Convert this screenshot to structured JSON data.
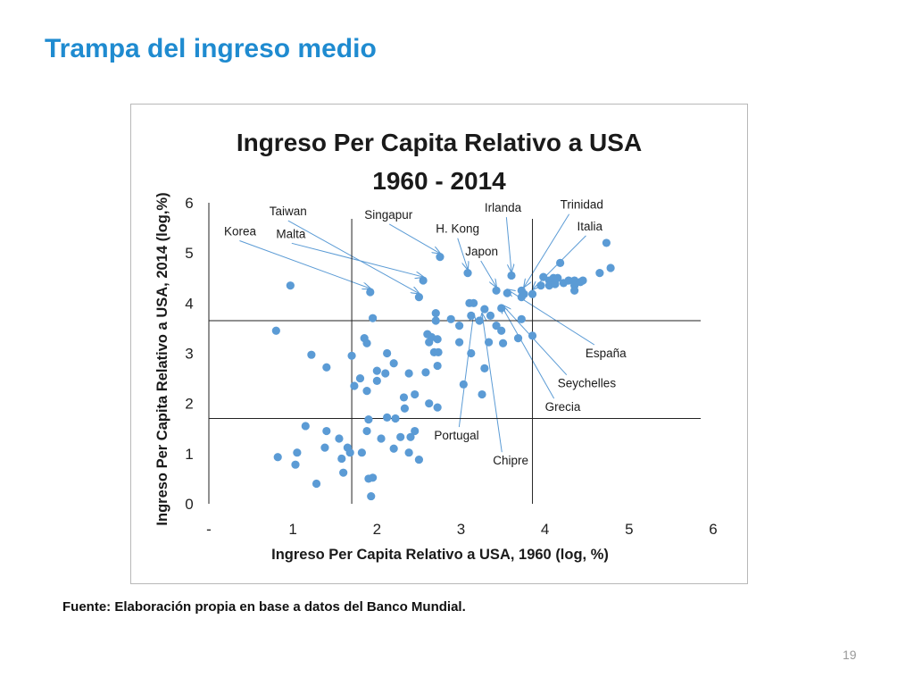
{
  "slide": {
    "title": "Trampa del ingreso medio",
    "source_note": "Fuente: Elaboración propia en base a datos del Banco Mundial.",
    "page_number": "19"
  },
  "chart_data": {
    "type": "scatter",
    "title_lines": [
      "Ingreso Per Capita Relativo a USA",
      "1960 - 2014"
    ],
    "xlabel": "Ingreso Per Capita Relativo a USA, 1960 (log, %)",
    "ylabel": "Ingreso Per Capita Relativo a USA, 2014 (log,%)",
    "xlim": [
      0,
      6
    ],
    "ylim": [
      0,
      6
    ],
    "x_ticks": [
      "-",
      "1",
      "2",
      "3",
      "4",
      "5",
      "6"
    ],
    "y_ticks": [
      "0",
      "1",
      "2",
      "3",
      "4",
      "5",
      "6"
    ],
    "reference_lines": {
      "vertical": [
        1.7,
        3.85
      ],
      "horizontal": [
        1.7,
        3.65
      ]
    },
    "marker_color": "#5b9bd5",
    "axis_color": "#222222",
    "points": [
      [
        0.97,
        4.35
      ],
      [
        0.8,
        3.45
      ],
      [
        1.22,
        2.97
      ],
      [
        1.4,
        2.72
      ],
      [
        1.15,
        1.55
      ],
      [
        1.4,
        1.45
      ],
      [
        1.55,
        1.3
      ],
      [
        1.38,
        1.12
      ],
      [
        1.65,
        1.12
      ],
      [
        1.68,
        1.02
      ],
      [
        1.05,
        1.02
      ],
      [
        0.82,
        0.93
      ],
      [
        1.03,
        0.78
      ],
      [
        1.58,
        0.9
      ],
      [
        1.6,
        0.62
      ],
      [
        1.28,
        0.4
      ],
      [
        1.9,
        0.5
      ],
      [
        1.82,
        1.02
      ],
      [
        1.88,
        1.45
      ],
      [
        1.9,
        1.68
      ],
      [
        1.95,
        0.52
      ],
      [
        1.93,
        0.15
      ],
      [
        1.7,
        2.95
      ],
      [
        1.85,
        3.3
      ],
      [
        1.88,
        3.2
      ],
      [
        1.73,
        2.35
      ],
      [
        1.8,
        2.5
      ],
      [
        1.88,
        2.25
      ],
      [
        2.0,
        2.45
      ],
      [
        2.0,
        2.65
      ],
      [
        2.1,
        2.6
      ],
      [
        2.12,
        3.0
      ],
      [
        2.2,
        2.8
      ],
      [
        2.05,
        1.3
      ],
      [
        2.12,
        1.72
      ],
      [
        2.22,
        1.7
      ],
      [
        2.28,
        1.33
      ],
      [
        2.4,
        1.33
      ],
      [
        2.45,
        1.45
      ],
      [
        2.38,
        1.02
      ],
      [
        2.2,
        1.1
      ],
      [
        2.5,
        0.88
      ],
      [
        2.32,
        2.12
      ],
      [
        2.45,
        2.18
      ],
      [
        2.33,
        1.9
      ],
      [
        2.38,
        2.6
      ],
      [
        2.58,
        2.62
      ],
      [
        2.62,
        2.0
      ],
      [
        2.72,
        1.92
      ],
      [
        2.72,
        2.75
      ],
      [
        2.68,
        3.02
      ],
      [
        2.73,
        3.02
      ],
      [
        2.62,
        3.22
      ],
      [
        2.65,
        3.32
      ],
      [
        2.6,
        3.38
      ],
      [
        2.72,
        3.28
      ],
      [
        2.7,
        3.65
      ],
      [
        2.7,
        3.8
      ],
      [
        2.88,
        3.68
      ],
      [
        2.98,
        3.55
      ],
      [
        2.98,
        3.22
      ],
      [
        3.03,
        2.38
      ],
      [
        3.12,
        3.0
      ],
      [
        3.12,
        3.75
      ],
      [
        3.1,
        4.0
      ],
      [
        3.15,
        4.0
      ],
      [
        3.22,
        3.65
      ],
      [
        3.28,
        3.88
      ],
      [
        3.33,
        3.22
      ],
      [
        3.28,
        2.7
      ],
      [
        3.25,
        2.18
      ],
      [
        3.35,
        3.75
      ],
      [
        3.42,
        3.55
      ],
      [
        3.5,
        3.2
      ],
      [
        3.48,
        3.45
      ],
      [
        3.48,
        3.9
      ],
      [
        3.55,
        4.2
      ],
      [
        3.72,
        3.68
      ],
      [
        3.68,
        3.3
      ],
      [
        3.85,
        3.35
      ],
      [
        3.42,
        4.25
      ],
      [
        3.72,
        4.25
      ],
      [
        3.75,
        4.18
      ],
      [
        3.72,
        4.12
      ],
      [
        3.85,
        4.18
      ],
      [
        3.98,
        4.52
      ],
      [
        3.95,
        4.35
      ],
      [
        4.05,
        4.45
      ],
      [
        4.1,
        4.5
      ],
      [
        4.05,
        4.35
      ],
      [
        4.12,
        4.38
      ],
      [
        4.15,
        4.5
      ],
      [
        4.22,
        4.4
      ],
      [
        4.28,
        4.45
      ],
      [
        4.35,
        4.45
      ],
      [
        4.35,
        4.35
      ],
      [
        4.42,
        4.42
      ],
      [
        4.45,
        4.45
      ],
      [
        4.18,
        4.8
      ],
      [
        4.35,
        4.25
      ],
      [
        4.65,
        4.6
      ],
      [
        4.73,
        5.2
      ],
      [
        4.78,
        4.7
      ],
      [
        3.08,
        4.6
      ],
      [
        3.6,
        4.55
      ],
      [
        2.75,
        4.92
      ],
      [
        2.55,
        4.45
      ],
      [
        2.5,
        4.12
      ],
      [
        1.92,
        4.22
      ],
      [
        1.95,
        3.7
      ]
    ],
    "annotations": [
      {
        "label": "Korea",
        "text_at": [
          0.18,
          5.35
        ],
        "target": [
          1.92,
          4.22
        ]
      },
      {
        "label": "Taiwan",
        "text_at": [
          0.72,
          5.75
        ],
        "target": [
          2.5,
          4.12
        ]
      },
      {
        "label": "Malta",
        "text_at": [
          0.8,
          5.3
        ],
        "target": [
          2.55,
          4.45
        ]
      },
      {
        "label": "Singapur",
        "text_at": [
          1.85,
          5.68
        ],
        "target": [
          2.75,
          4.92
        ]
      },
      {
        "label": "H. Kong",
        "text_at": [
          2.7,
          5.4
        ],
        "target": [
          3.08,
          4.6
        ]
      },
      {
        "label": "Irlanda",
        "text_at": [
          3.28,
          5.82
        ],
        "target": [
          3.6,
          4.55
        ]
      },
      {
        "label": "Trinidad",
        "text_at": [
          4.18,
          5.88
        ],
        "target": [
          3.75,
          4.25
        ]
      },
      {
        "label": "Italia",
        "text_at": [
          4.38,
          5.45
        ],
        "target": [
          3.85,
          4.2
        ]
      },
      {
        "label": "Japon",
        "text_at": [
          3.05,
          4.95
        ],
        "target": [
          3.42,
          4.25
        ]
      },
      {
        "label": "España",
        "text_at": [
          4.48,
          2.92
        ],
        "target": [
          3.55,
          4.2
        ]
      },
      {
        "label": "Seychelles",
        "text_at": [
          4.15,
          2.32
        ],
        "target": [
          3.5,
          3.88
        ]
      },
      {
        "label": "Grecia",
        "text_at": [
          4.0,
          1.85
        ],
        "target": [
          3.48,
          3.88
        ]
      },
      {
        "label": "Portugal",
        "text_at": [
          2.68,
          1.28
        ],
        "target": [
          3.15,
          3.72
        ]
      },
      {
        "label": "Chipre",
        "text_at": [
          3.38,
          0.78
        ],
        "target": [
          3.25,
          3.72
        ]
      }
    ]
  }
}
